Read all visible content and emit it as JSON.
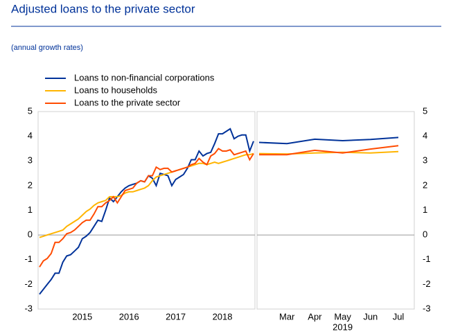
{
  "header": {
    "title": "Adjusted loans to the private sector",
    "subtitle": "(annual growth rates)"
  },
  "chart_data": [
    {
      "type": "line",
      "y_axis_side": "left",
      "categories": [
        null,
        null,
        null,
        null,
        null,
        null,
        null,
        null,
        null,
        null,
        null,
        "2015",
        null,
        null,
        null,
        null,
        null,
        null,
        null,
        null,
        null,
        null,
        null,
        "2016",
        null,
        null,
        null,
        null,
        null,
        null,
        null,
        null,
        null,
        null,
        null,
        "2017",
        null,
        null,
        null,
        null,
        null,
        null,
        null,
        null,
        null,
        null,
        null,
        "2018",
        null,
        null,
        null,
        null,
        null,
        null,
        null,
        null
      ],
      "ylim": [
        -3,
        5
      ],
      "yticks": [
        -3,
        -2,
        -1,
        0,
        1,
        2,
        3,
        4,
        5
      ],
      "series": [
        {
          "name": "Loans to non-financial corporations",
          "color": "#003299",
          "values": [
            -2.4,
            -2.2,
            -2.0,
            -1.8,
            -1.55,
            -1.55,
            -1.1,
            -0.85,
            -0.8,
            -0.65,
            -0.5,
            -0.15,
            -0.05,
            0.1,
            0.35,
            0.6,
            0.55,
            1.0,
            1.5,
            1.35,
            1.55,
            1.75,
            1.9,
            2.0,
            2.05,
            2.1,
            2.2,
            2.15,
            2.4,
            2.3,
            2.0,
            2.5,
            2.45,
            2.4,
            2.0,
            2.25,
            2.35,
            2.45,
            2.7,
            3.05,
            3.05,
            3.4,
            3.2,
            3.3,
            3.35,
            3.7,
            4.1,
            4.1,
            4.2,
            4.3,
            3.9,
            4.0,
            4.05,
            4.05,
            3.4,
            3.8
          ]
        },
        {
          "name": "Loans to households",
          "color": "#ffb400",
          "values": [
            -0.1,
            -0.05,
            0.0,
            0.05,
            0.1,
            0.15,
            0.2,
            0.35,
            0.45,
            0.55,
            0.65,
            0.8,
            0.95,
            1.05,
            1.2,
            1.3,
            1.35,
            1.4,
            1.55,
            1.55,
            1.55,
            1.6,
            1.7,
            1.75,
            1.75,
            1.8,
            1.85,
            1.9,
            2.0,
            2.2,
            2.35,
            2.4,
            2.45,
            2.5,
            2.55,
            2.6,
            2.65,
            2.7,
            2.75,
            2.8,
            2.85,
            2.9,
            2.9,
            2.85,
            2.9,
            2.95,
            2.9,
            2.95,
            3.0,
            3.05,
            3.1,
            3.15,
            3.2,
            3.25,
            3.25,
            3.3
          ]
        },
        {
          "name": "Loans to the private sector",
          "color": "#ff4b00",
          "values": [
            -1.3,
            -1.05,
            -0.95,
            -0.75,
            -0.3,
            -0.3,
            -0.15,
            0.05,
            0.1,
            0.2,
            0.35,
            0.5,
            0.6,
            0.6,
            0.85,
            1.15,
            1.15,
            1.3,
            1.4,
            1.55,
            1.3,
            1.55,
            1.8,
            1.85,
            1.9,
            2.1,
            2.2,
            2.15,
            2.4,
            2.4,
            2.75,
            2.65,
            2.7,
            2.7,
            2.55,
            2.6,
            2.65,
            2.7,
            2.75,
            2.85,
            2.9,
            3.1,
            2.95,
            2.85,
            3.2,
            3.3,
            3.5,
            3.4,
            3.4,
            3.45,
            3.25,
            3.3,
            3.35,
            3.4,
            3.05,
            3.3
          ]
        }
      ]
    },
    {
      "type": "line",
      "y_axis_side": "right",
      "xlabel": "2019",
      "categories": [
        null,
        "Mar",
        "Apr",
        "May",
        "Jun",
        "Jul"
      ],
      "ylim": [
        -3,
        5
      ],
      "yticks": [
        -3,
        -2,
        -1,
        0,
        1,
        2,
        3,
        4,
        5
      ],
      "series": [
        {
          "color": "#003299",
          "values": [
            3.75,
            3.7,
            3.88,
            3.82,
            3.87,
            3.95
          ]
        },
        {
          "color": "#ffb400",
          "values": [
            3.3,
            3.28,
            3.32,
            3.35,
            3.32,
            3.38
          ]
        },
        {
          "color": "#ff4b00",
          "values": [
            3.25,
            3.25,
            3.43,
            3.32,
            3.48,
            3.62
          ]
        }
      ]
    }
  ]
}
